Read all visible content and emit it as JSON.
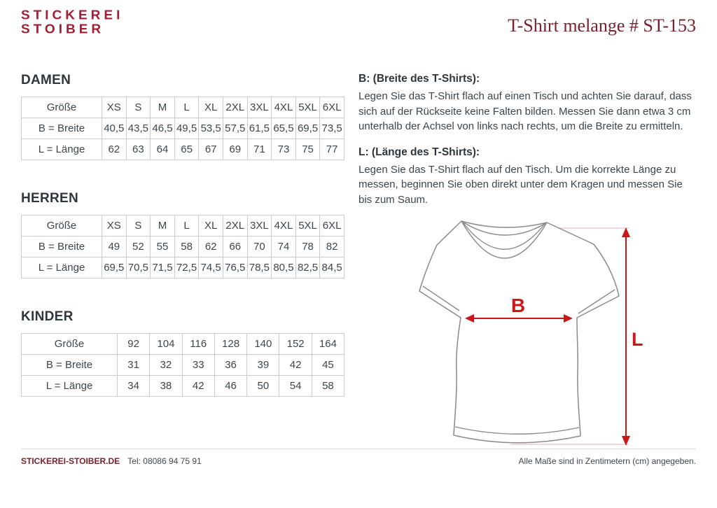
{
  "header": {
    "logo_line1": "STICKEREI",
    "logo_line2": "STOIBER",
    "title": "T-Shirt melange # ST-153"
  },
  "tables": [
    {
      "section": "DAMEN",
      "row_labels": [
        "Größe",
        "B = Breite",
        "L = Länge"
      ],
      "sizes": [
        "XS",
        "S",
        "M",
        "L",
        "XL",
        "2XL",
        "3XL",
        "4XL",
        "5XL",
        "6XL"
      ],
      "breite": [
        "40,5",
        "43,5",
        "46,5",
        "49,5",
        "53,5",
        "57,5",
        "61,5",
        "65,5",
        "69,5",
        "73,5"
      ],
      "laenge": [
        "62",
        "63",
        "64",
        "65",
        "67",
        "69",
        "71",
        "73",
        "75",
        "77"
      ]
    },
    {
      "section": "HERREN",
      "row_labels": [
        "Größe",
        "B = Breite",
        "L = Länge"
      ],
      "sizes": [
        "XS",
        "S",
        "M",
        "L",
        "XL",
        "2XL",
        "3XL",
        "4XL",
        "5XL",
        "6XL"
      ],
      "breite": [
        "49",
        "52",
        "55",
        "58",
        "62",
        "66",
        "70",
        "74",
        "78",
        "82"
      ],
      "laenge": [
        "69,5",
        "70,5",
        "71,5",
        "72,5",
        "74,5",
        "76,5",
        "78,5",
        "80,5",
        "82,5",
        "84,5"
      ]
    },
    {
      "section": "KINDER",
      "row_labels": [
        "Größe",
        "B = Breite",
        "L = Länge"
      ],
      "sizes": [
        "92",
        "104",
        "116",
        "128",
        "140",
        "152",
        "164"
      ],
      "breite": [
        "31",
        "32",
        "33",
        "36",
        "39",
        "42",
        "45"
      ],
      "laenge": [
        "34",
        "38",
        "42",
        "46",
        "50",
        "54",
        "58"
      ]
    }
  ],
  "instructions": [
    {
      "heading": "B: (Breite des T-Shirts):",
      "body": "Legen Sie das T-Shirt flach auf einen Tisch und achten Sie darauf, dass sich auf der Rückseite keine Falten bilden. Messen Sie dann etwa 3 cm unterhalb der Achsel von links nach rechts, um die Breite zu ermitteln."
    },
    {
      "heading": "L: (Länge des T-Shirts):",
      "body": "Legen Sie das T-Shirt flach auf den Tisch. Um die korrekte Länge zu messen, beginnen Sie oben direkt unter dem Kragen und messen Sie bis zum Saum."
    }
  ],
  "diagram": {
    "width_label": "B",
    "length_label": "L"
  },
  "footer": {
    "website": "STICKEREI-STOIBER.DE",
    "phone": "Tel: 08086 94 75 91",
    "note": "Alle Maße sind in Zentimetern (cm) angegeben."
  },
  "colors": {
    "logo_red": "#a21e33",
    "title_maroon": "#76232e",
    "arrow_red": "#cc1618",
    "text_dark": "#3c464e",
    "table_border": "#cccccc",
    "footer_red": "#7b1f28"
  }
}
